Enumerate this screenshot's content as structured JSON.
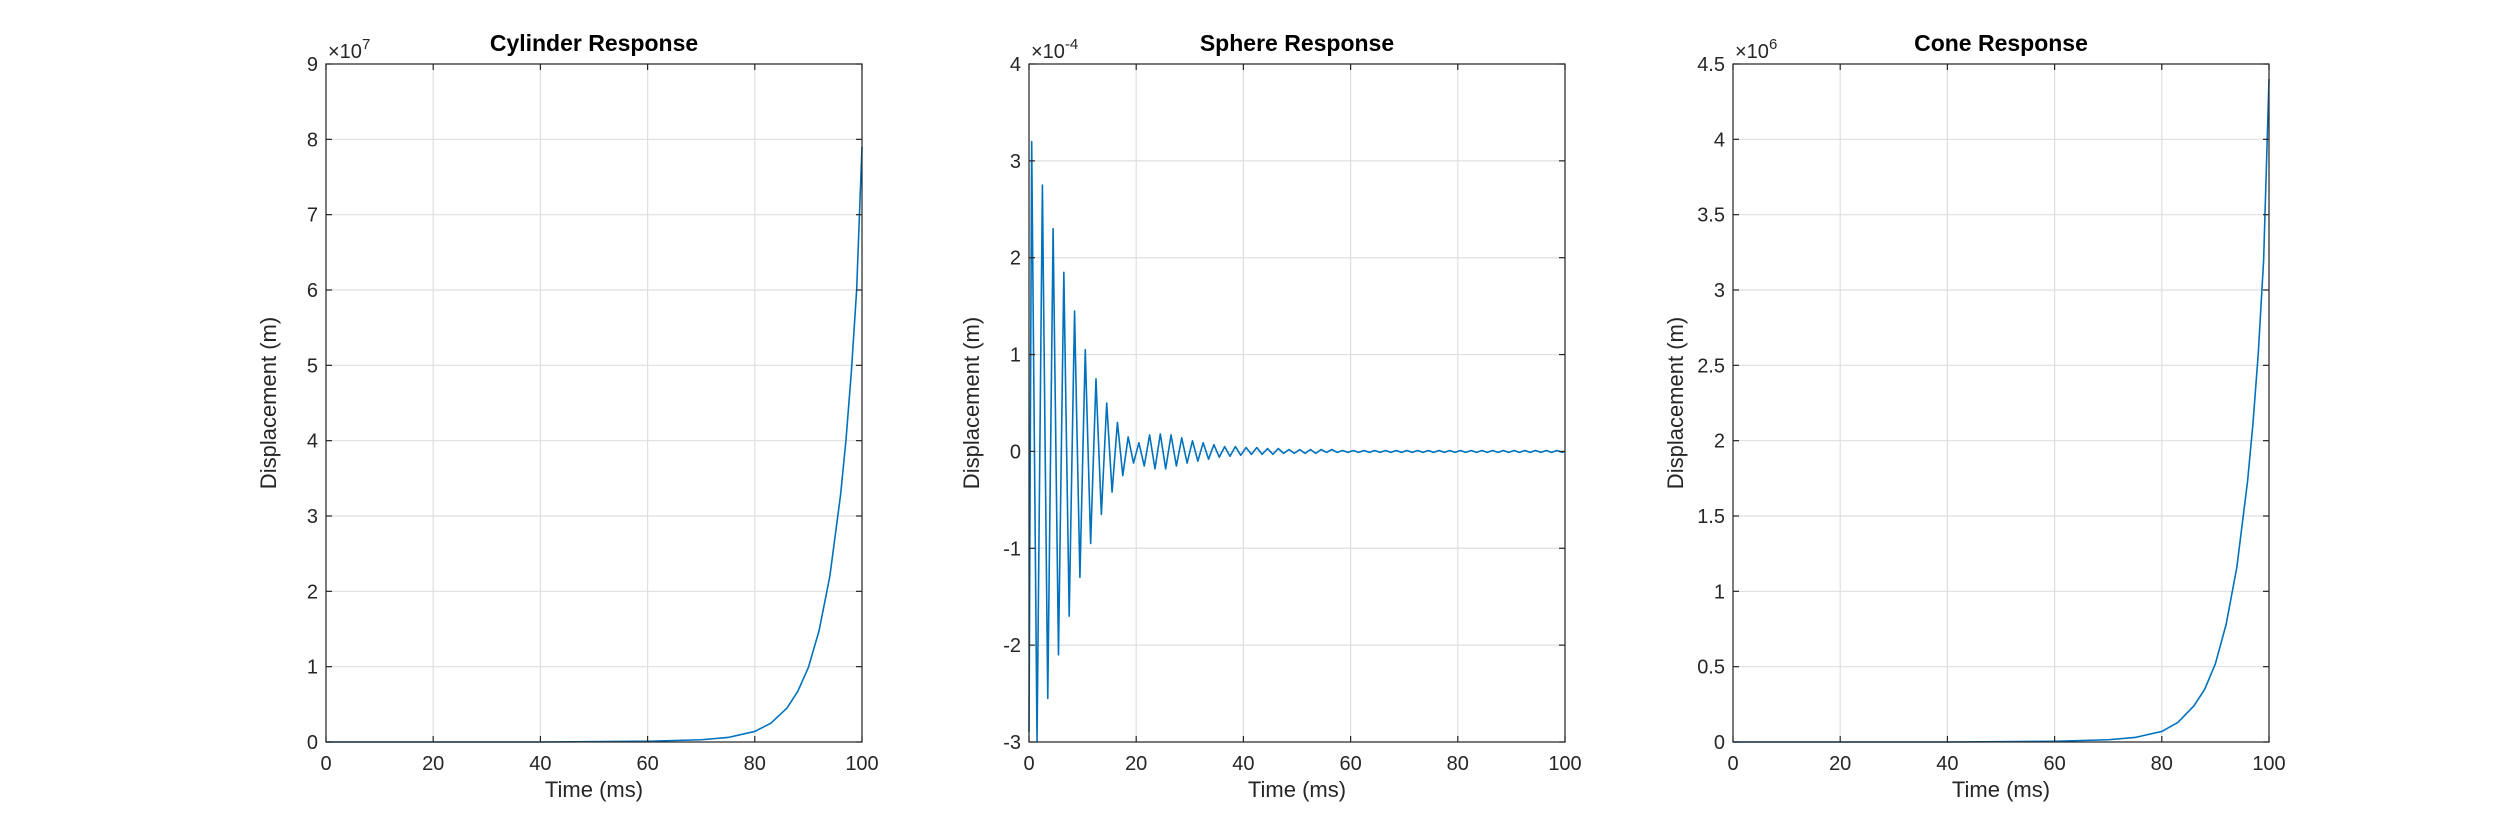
{
  "chart_data": [
    {
      "type": "line",
      "title": "Cylinder Response",
      "xlabel": "Time (ms)",
      "ylabel": "Displacement (m)",
      "exponent_label": "×10^7",
      "exp_base": "×10",
      "exp_power": "7",
      "xlim": [
        0,
        100
      ],
      "ylim": [
        0,
        9
      ],
      "xticks": [
        "0",
        "20",
        "40",
        "60",
        "80",
        "100"
      ],
      "yticks": [
        "0",
        "1",
        "2",
        "3",
        "4",
        "5",
        "6",
        "7",
        "8",
        "9"
      ],
      "grid": true,
      "series": [
        {
          "color": "#0072bd",
          "x": [
            0,
            40,
            60,
            70,
            75,
            80,
            83,
            86,
            88,
            90,
            92,
            94,
            96,
            97,
            98,
            99,
            100
          ],
          "y": [
            0,
            0,
            0.01,
            0.03,
            0.06,
            0.14,
            0.25,
            0.45,
            0.67,
            0.99,
            1.48,
            2.2,
            3.28,
            4.0,
            4.9,
            6.0,
            7.9
          ]
        }
      ]
    },
    {
      "type": "line",
      "title": "Sphere Response",
      "xlabel": "Time (ms)",
      "ylabel": "Displacement (m)",
      "exponent_label": "×10^-4",
      "exp_base": "×10",
      "exp_power": "-4",
      "xlim": [
        0,
        100
      ],
      "ylim": [
        -3,
        4
      ],
      "xticks": [
        "0",
        "20",
        "40",
        "60",
        "80",
        "100"
      ],
      "yticks": [
        "-3",
        "-2",
        "-1",
        "0",
        "1",
        "2",
        "3",
        "4"
      ],
      "grid": true,
      "series": [
        {
          "color": "#0072bd",
          "x": [
            0.0,
            0.5,
            1.5,
            2.5,
            3.5,
            4.5,
            5.5,
            6.5,
            7.5,
            8.5,
            9.5,
            10.5,
            11.5,
            12.5,
            13.5,
            14.5,
            15.5,
            16.5,
            17.5,
            18.5,
            19.5,
            20.5,
            21.5,
            22.5,
            23.5,
            24.5,
            25.5,
            26.5,
            27.5,
            28.5,
            29.5,
            30.5,
            31.5,
            32.5,
            33.5,
            34.5,
            35.5,
            36.5,
            37.5,
            38.5,
            39.5,
            40.5,
            41.5,
            42.5,
            43.5,
            44.5,
            45.5,
            46.5,
            47.5,
            48.5,
            49.5,
            50.5,
            51.5,
            52.5,
            53.5,
            54.5,
            55.5,
            56.5,
            57.5,
            58.5,
            59.5,
            60.5,
            61.5,
            62.5,
            63.5,
            64.5,
            65.5,
            66.5,
            67.5,
            68.5,
            69.5,
            70.5,
            71.5,
            72.5,
            73.5,
            74.5,
            75.5,
            76.5,
            77.5,
            78.5,
            79.5,
            80.5,
            81.5,
            82.5,
            83.5,
            84.5,
            85.5,
            86.5,
            87.5,
            88.5,
            89.5,
            90.5,
            91.5,
            92.5,
            93.5,
            94.5,
            95.5,
            96.5,
            97.5,
            98.5,
            99.5,
            100.0
          ],
          "y": [
            -2.9,
            3.2,
            -3.0,
            2.75,
            -2.55,
            2.3,
            -2.1,
            1.85,
            -1.7,
            1.45,
            -1.3,
            1.05,
            -0.95,
            0.75,
            -0.65,
            0.5,
            -0.42,
            0.3,
            -0.25,
            0.15,
            -0.12,
            0.09,
            -0.15,
            0.17,
            -0.18,
            0.18,
            -0.18,
            0.17,
            -0.15,
            0.14,
            -0.12,
            0.11,
            -0.1,
            0.09,
            -0.08,
            0.07,
            -0.06,
            0.05,
            -0.05,
            0.05,
            -0.04,
            0.04,
            -0.03,
            0.04,
            -0.03,
            0.03,
            -0.03,
            0.03,
            -0.02,
            0.02,
            -0.02,
            0.02,
            -0.02,
            0.02,
            -0.02,
            0.02,
            -0.01,
            0.02,
            -0.01,
            0.01,
            -0.01,
            0.01,
            -0.01,
            0.01,
            -0.01,
            0.01,
            -0.01,
            0.01,
            -0.01,
            0.01,
            -0.01,
            0.01,
            -0.01,
            0.01,
            -0.01,
            0.01,
            -0.01,
            0.01,
            -0.01,
            0.01,
            -0.01,
            0.01,
            -0.01,
            0.01,
            -0.01,
            0.01,
            -0.01,
            0.01,
            -0.01,
            0.01,
            -0.01,
            0.01,
            -0.01,
            0.01,
            -0.01,
            0.01,
            -0.01,
            0.01,
            -0.01,
            0.01,
            -0.01,
            0.0
          ]
        }
      ]
    },
    {
      "type": "line",
      "title": "Cone Response",
      "xlabel": "Time (ms)",
      "ylabel": "Displacement (m)",
      "exponent_label": "×10^6",
      "exp_base": "×10",
      "exp_power": "6",
      "xlim": [
        0,
        100
      ],
      "ylim": [
        0,
        4.5
      ],
      "xticks": [
        "0",
        "20",
        "40",
        "60",
        "80",
        "100"
      ],
      "yticks": [
        "0",
        "0.5",
        "1",
        "1.5",
        "2",
        "2.5",
        "3",
        "3.5",
        "4",
        "4.5"
      ],
      "grid": true,
      "series": [
        {
          "color": "#0072bd",
          "x": [
            0,
            40,
            60,
            70,
            75,
            80,
            83,
            86,
            88,
            90,
            92,
            94,
            96,
            97,
            98,
            99,
            100
          ],
          "y": [
            0,
            0,
            0.005,
            0.015,
            0.03,
            0.07,
            0.13,
            0.24,
            0.35,
            0.52,
            0.78,
            1.16,
            1.73,
            2.11,
            2.58,
            3.2,
            4.4
          ]
        }
      ]
    }
  ]
}
